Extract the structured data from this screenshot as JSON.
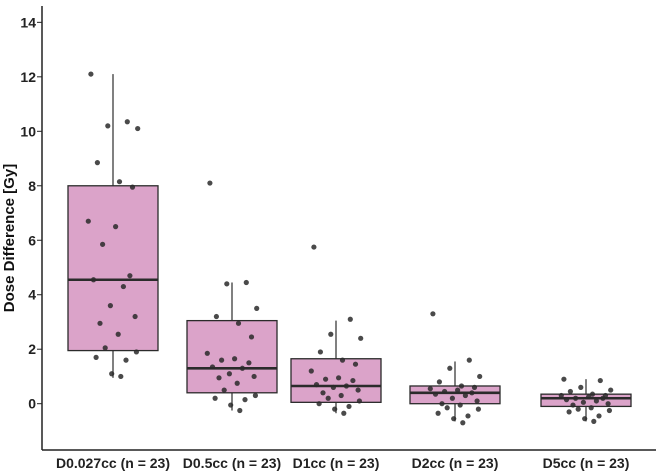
{
  "chart_data": {
    "type": "box",
    "title": "",
    "xlabel": "",
    "ylabel": "Dose Difference [Gy]",
    "ylim": [
      -1.7,
      14.6
    ],
    "yticks": [
      0,
      2,
      4,
      6,
      8,
      10,
      12,
      14
    ],
    "grid": false,
    "legend": "none",
    "colors": {
      "box_fill": "#dba3c9",
      "box_edge": "#2b2b2b",
      "point": "#2a2a2a",
      "axis": "#222222"
    },
    "categories": [
      "D0.027cc (n = 23)",
      "D0.5cc (n = 23)",
      "D1cc (n = 23)",
      "D2cc (n = 23)",
      "D5cc (n = 23)"
    ],
    "boxes": [
      {
        "q1": 1.95,
        "median": 4.55,
        "q3": 8.0,
        "whisker_low": 0.95,
        "whisker_high": 12.1,
        "points": [
          12.1,
          10.35,
          10.2,
          10.1,
          8.85,
          8.15,
          7.95,
          6.7,
          6.5,
          5.85,
          4.7,
          4.55,
          4.3,
          3.6,
          3.2,
          2.95,
          2.55,
          2.05,
          1.9,
          1.7,
          1.6,
          1.1,
          1.0
        ]
      },
      {
        "q1": 0.4,
        "median": 1.3,
        "q3": 3.05,
        "whisker_low": -0.25,
        "whisker_high": 4.45,
        "points": [
          8.1,
          4.45,
          4.4,
          3.5,
          3.2,
          2.95,
          2.45,
          1.85,
          1.65,
          1.6,
          1.5,
          1.35,
          1.3,
          1.1,
          1.0,
          0.95,
          0.75,
          0.5,
          0.3,
          0.2,
          0.15,
          -0.05,
          -0.25
        ]
      },
      {
        "q1": 0.05,
        "median": 0.65,
        "q3": 1.65,
        "whisker_low": -0.35,
        "whisker_high": 3.05,
        "points": [
          5.75,
          3.1,
          2.55,
          2.4,
          1.9,
          1.6,
          1.45,
          1.2,
          0.95,
          0.9,
          0.85,
          0.7,
          0.65,
          0.6,
          0.5,
          0.4,
          0.3,
          0.2,
          0.1,
          0.0,
          -0.1,
          -0.2,
          -0.35
        ]
      },
      {
        "q1": 0.0,
        "median": 0.4,
        "q3": 0.65,
        "whisker_low": -0.65,
        "whisker_high": 1.55,
        "points": [
          3.3,
          1.6,
          1.3,
          1.0,
          0.8,
          0.65,
          0.6,
          0.55,
          0.5,
          0.45,
          0.4,
          0.35,
          0.3,
          0.2,
          0.1,
          0.0,
          -0.05,
          -0.15,
          -0.2,
          -0.35,
          -0.45,
          -0.55,
          -0.7
        ]
      },
      {
        "q1": -0.1,
        "median": 0.2,
        "q3": 0.35,
        "whisker_low": -0.65,
        "whisker_high": 0.9,
        "points": [
          0.9,
          0.85,
          0.6,
          0.5,
          0.45,
          0.35,
          0.3,
          0.3,
          0.25,
          0.2,
          0.2,
          0.15,
          0.1,
          0.05,
          0.0,
          -0.05,
          -0.15,
          -0.2,
          -0.25,
          -0.3,
          -0.45,
          -0.55,
          -0.65
        ]
      }
    ]
  }
}
